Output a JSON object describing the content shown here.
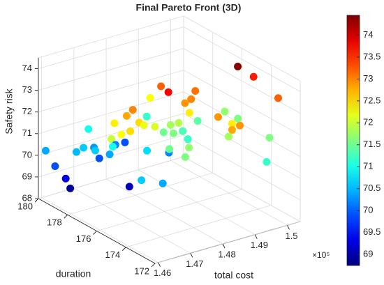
{
  "chart_data": {
    "type": "scatter3d",
    "title": "Final Pareto Front (3D)",
    "x_label": "total cost",
    "y_label": "duration",
    "z_label": "Safety risk",
    "x_offset_label": "×10⁵",
    "xlim": [
      145900,
      150400
    ],
    "xticks": [
      {
        "value": 146000,
        "label": "1.46"
      },
      {
        "value": 147000,
        "label": "1.47"
      },
      {
        "value": 148000,
        "label": "1.48"
      },
      {
        "value": 149000,
        "label": "1.49"
      },
      {
        "value": 150000,
        "label": "1.5"
      }
    ],
    "ylim": [
      172,
      180
    ],
    "yticks": [
      172,
      174,
      176,
      178,
      180
    ],
    "zlim": [
      68,
      74.5
    ],
    "zticks": [
      68,
      69,
      70,
      71,
      72,
      73,
      74
    ],
    "grid": true,
    "colormap": "jet",
    "clim": [
      68.75,
      74.45
    ],
    "colorbar_ticks": [
      69,
      69.5,
      70,
      70.5,
      71,
      71.5,
      72,
      72.5,
      73,
      73.5,
      74
    ],
    "x": [
      149730,
      150310,
      150350,
      148390,
      147850,
      149000,
      148690,
      148500,
      148460,
      147110,
      146920,
      148580,
      147170,
      146720,
      146670,
      146530,
      146400,
      147090,
      147700,
      148220,
      146940,
      147080,
      146620,
      146760,
      146400,
      147070,
      147110,
      145900,
      145920,
      146160,
      146210,
      147320,
      146610,
      147090,
      147730,
      148500,
      147610,
      147560,
      147900,
      148280,
      148700,
      148440,
      147660,
      147410,
      148640,
      149300,
      148670,
      149960,
      149100,
      148800,
      148560,
      149040,
      150050,
      149990,
      149360,
      148190,
      148110,
      148590
    ],
    "y": [
      174.8,
      175.0,
      173.4,
      177.1,
      175.4,
      176.1,
      175.7,
      175.7,
      178.0,
      176.2,
      176.2,
      178.5,
      175.9,
      176.6,
      175.4,
      175.7,
      176.1,
      179.2,
      178.7,
      179.2,
      177.2,
      178.8,
      178.5,
      178.0,
      178.5,
      177.7,
      178.5,
      179.5,
      178.9,
      178.7,
      178.5,
      176.9,
      174.5,
      174.1,
      176.6,
      176.8,
      174.8,
      173.6,
      174.1,
      176.2,
      176.3,
      176.0,
      175.9,
      176.1,
      175.7,
      176.6,
      173.8,
      176.2,
      173.8,
      172.6,
      172.6,
      173.9,
      175.5,
      173.2,
      172.0,
      175.8,
      176.3,
      175.7
    ],
    "z": [
      74.4,
      73.6,
      73.2,
      73.2,
      73.8,
      73.1,
      73.0,
      72.9,
      72.3,
      73.0,
      72.8,
      71.2,
      72.5,
      72.4,
      72.5,
      72.3,
      72.0,
      71.0,
      70.2,
      69.9,
      71.0,
      70.3,
      70.6,
      70.6,
      70.5,
      70.4,
      69.9,
      70.4,
      69.9,
      69.3,
      68.9,
      69.1,
      70.6,
      70.4,
      70.7,
      70.2,
      71.5,
      71.6,
      71.7,
      71.8,
      71.3,
      71.9,
      72.1,
      72.2,
      72.4,
      71.4,
      72.9,
      71.7,
      72.4,
      72.9,
      72.8,
      71.8,
      71.6,
      71.6,
      71.2,
      71.6,
      71.5,
      71.2
    ]
  }
}
